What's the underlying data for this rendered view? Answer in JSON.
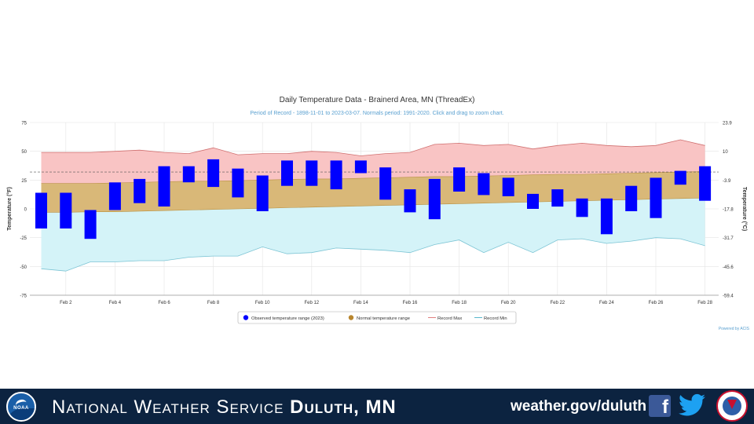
{
  "chart_data": {
    "type": "bar",
    "title": "Daily Temperature Data - Brainerd Area, MN (ThreadEx)",
    "subtitle": "Period of Record - 1898-11-01 to 2023-03-07. Normals period: 1991-2020. Click and drag to zoom chart.",
    "ylabel": "Temperature (°F)",
    "ylabel_right": "Temperature (°C)",
    "ylim": [
      -75,
      75
    ],
    "yticks": [
      75,
      50,
      25,
      0,
      -25,
      -50,
      -75
    ],
    "yticks_right": [
      "23.9",
      "10",
      "-3.9",
      "-17.8",
      "-31.7",
      "-45.6",
      "-59.4"
    ],
    "x": [
      1,
      2,
      3,
      4,
      5,
      6,
      7,
      8,
      9,
      10,
      11,
      12,
      13,
      14,
      15,
      16,
      17,
      18,
      19,
      20,
      21,
      22,
      23,
      24,
      25,
      26,
      27,
      28
    ],
    "xtick_labels": [
      "Feb 2",
      "Feb 4",
      "Feb 6",
      "Feb 8",
      "Feb 10",
      "Feb 12",
      "Feb 14",
      "Feb 16",
      "Feb 18",
      "Feb 20",
      "Feb 22",
      "Feb 24",
      "Feb 26",
      "Feb 28"
    ],
    "xtick_days": [
      2,
      4,
      6,
      8,
      10,
      12,
      14,
      16,
      18,
      20,
      22,
      24,
      26,
      28
    ],
    "reference_line": 32,
    "legend_position": "bottom",
    "credit": "Powered by ACIS",
    "series": [
      {
        "name": "Observed temperature range (2023)",
        "color": "#0000ff",
        "low": [
          -17,
          -17,
          -26,
          -1,
          5,
          2,
          23,
          19,
          10,
          -2,
          20,
          20,
          17,
          31,
          8,
          -3,
          -9,
          15,
          12,
          11,
          0,
          2,
          -7,
          -22,
          -2,
          -8,
          21,
          7
        ],
        "high": [
          14,
          14,
          -1,
          23,
          26,
          37,
          37,
          43,
          35,
          29,
          42,
          42,
          42,
          42,
          36,
          17,
          26,
          36,
          31,
          27,
          13,
          17,
          9,
          9,
          20,
          27,
          33,
          37
        ]
      },
      {
        "name": "Normal temperature range",
        "color": "#c8a050",
        "low": [
          -3,
          -3,
          -2.5,
          -2.5,
          -2,
          -1.5,
          -1,
          -0.5,
          0,
          0.5,
          1,
          1.5,
          2,
          2.5,
          3,
          3.5,
          4,
          4.5,
          5,
          5.5,
          6,
          6.5,
          7,
          7.5,
          8,
          8.5,
          9,
          9.5
        ],
        "high": [
          22,
          22,
          22,
          22.5,
          23,
          23.5,
          24,
          24,
          24.5,
          25,
          25.5,
          26,
          26,
          26.5,
          27,
          27.5,
          28,
          28,
          28.5,
          29,
          29.5,
          30,
          30,
          30.5,
          31,
          31.5,
          32,
          32.5
        ]
      },
      {
        "name": "Record Max",
        "color": "#e08080",
        "values": [
          49,
          49,
          49,
          50,
          51,
          49,
          48,
          53,
          47,
          48,
          48,
          50,
          49,
          46,
          48,
          49,
          56,
          57,
          55,
          56,
          52,
          55,
          57,
          55,
          54,
          55,
          60,
          55
        ]
      },
      {
        "name": "Record Min",
        "color": "#80c8d8",
        "values": [
          -52,
          -54,
          -46,
          -46,
          -45,
          -45,
          -42,
          -41,
          -41,
          -33,
          -39,
          -38,
          -34,
          -35,
          -36,
          -38,
          -31,
          -27,
          -38,
          -29,
          -38,
          -27,
          -26,
          -30,
          -28,
          -25,
          -26,
          -32
        ]
      }
    ]
  },
  "footer": {
    "org": "National Weather Service",
    "location": "Duluth, MN",
    "website": "weather.gov/duluth",
    "noaa_text": "NOAA"
  },
  "icons": [
    "noaa-logo-icon",
    "facebook-icon",
    "twitter-icon",
    "nws-seal-icon"
  ]
}
